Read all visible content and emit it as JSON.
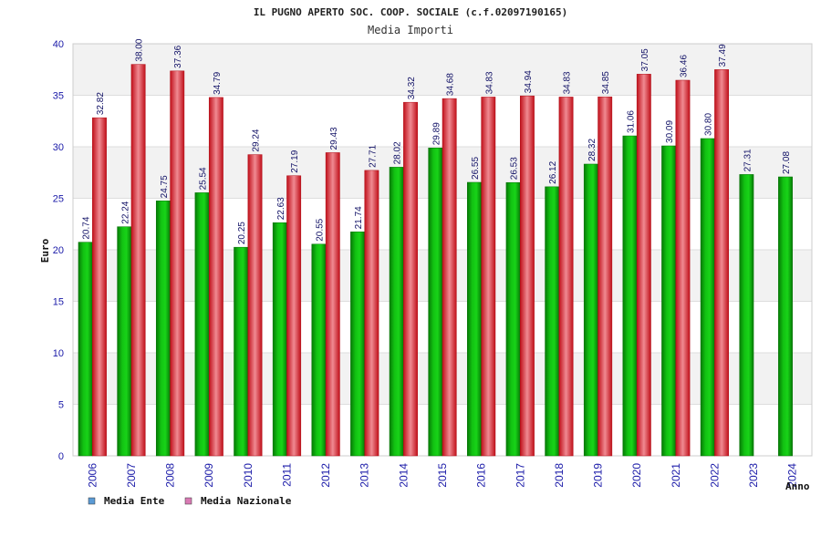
{
  "chart_data": {
    "type": "bar",
    "title": "IL PUGNO APERTO SOC. COOP. SOCIALE (c.f.02097190165)",
    "subtitle": "Media Importi",
    "xlabel": "Anno",
    "ylabel": "Euro",
    "ylim": [
      0,
      40
    ],
    "yticks": [
      0,
      5,
      10,
      15,
      20,
      25,
      30,
      35,
      40
    ],
    "categories": [
      "2006",
      "2007",
      "2008",
      "2009",
      "2010",
      "2011",
      "2012",
      "2013",
      "2014",
      "2015",
      "2016",
      "2017",
      "2018",
      "2019",
      "2020",
      "2021",
      "2022",
      "2023",
      "2024"
    ],
    "series": [
      {
        "name": "Media Ente",
        "color": "#0ab00a",
        "legend_color": "#5b9bd5",
        "values": [
          20.74,
          22.24,
          24.75,
          25.54,
          20.25,
          22.63,
          20.55,
          21.74,
          28.02,
          29.89,
          26.55,
          26.53,
          26.12,
          28.32,
          31.06,
          30.09,
          30.8,
          27.31,
          27.08
        ],
        "labels": [
          "20.74",
          "22.24",
          "24.75",
          "25.54",
          "20.25",
          "22.63",
          "20.55",
          "21.74",
          "28.02",
          "29.89",
          "26.55",
          "26.53",
          "26.12",
          "28.32",
          "31.06",
          "30.09",
          "30.80",
          "27.31",
          "27.08"
        ]
      },
      {
        "name": "Media Nazionale",
        "color": "#e8202a",
        "legend_color": "#d97ab4",
        "values": [
          32.82,
          38.0,
          37.36,
          34.79,
          29.24,
          27.19,
          29.43,
          27.71,
          34.32,
          34.68,
          34.83,
          34.94,
          34.83,
          34.85,
          37.05,
          36.46,
          37.49,
          null,
          null
        ],
        "labels": [
          "32.82",
          "38.00",
          "37.36",
          "34.79",
          "29.24",
          "27.19",
          "29.43",
          "27.71",
          "34.32",
          "34.68",
          "34.83",
          "34.94",
          "34.83",
          "34.85",
          "37.05",
          "36.46",
          "37.49",
          null,
          null
        ]
      }
    ],
    "legend": "bottom-left"
  }
}
